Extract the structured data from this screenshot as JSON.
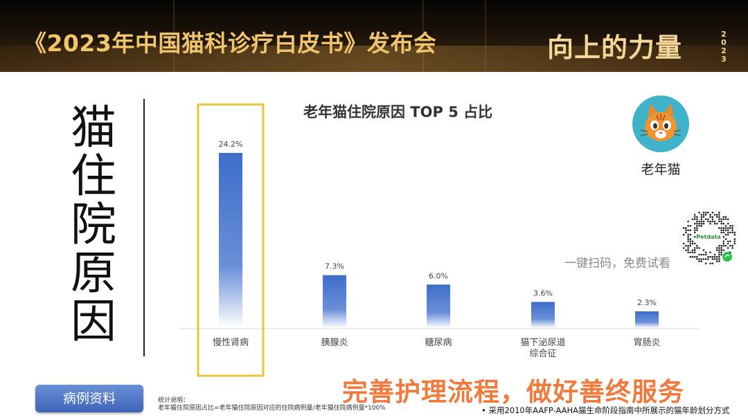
{
  "header": {
    "title": "《2023年中国猫科诊疗白皮书》发布会",
    "logo_text": "向上的力量",
    "logo_year": "2023"
  },
  "side_title": "猫住院原因",
  "chart_data": {
    "type": "bar",
    "title": "老年猫住院原因 TOP 5 占比",
    "categories": [
      "慢性肾病",
      "胰腺炎",
      "糖尿病",
      "猫下泌尿道\n综合征",
      "胃肠炎"
    ],
    "values": [
      24.2,
      7.3,
      6.0,
      3.6,
      2.3
    ],
    "value_labels": [
      "24.2%",
      "7.3%",
      "6.0%",
      "3.6%",
      "2.3%"
    ],
    "unit": "%",
    "highlighted_category": "慢性肾病",
    "ylim": [
      0,
      24.2
    ],
    "grid": false,
    "bar_color": "#3d6ec9",
    "highlight_color": "#e9c53a"
  },
  "badge": {
    "label": "老年猫",
    "icon": "cat-face-icon"
  },
  "qr": {
    "caption": "一键扫码，免费试看",
    "brand": "Petdata"
  },
  "case_button": {
    "label": "病例资料"
  },
  "notes": {
    "title": "统计说明：",
    "body": "老年猫住院原因占比=老年猫住院原因对应的住院病例量/老年猫住院病例量*100%"
  },
  "slogan": "完善护理流程，做好善终服务",
  "footnote": "•  采用2010年AAFP-AAHA猫生命阶段指南中所展示的猫年龄划分方式"
}
